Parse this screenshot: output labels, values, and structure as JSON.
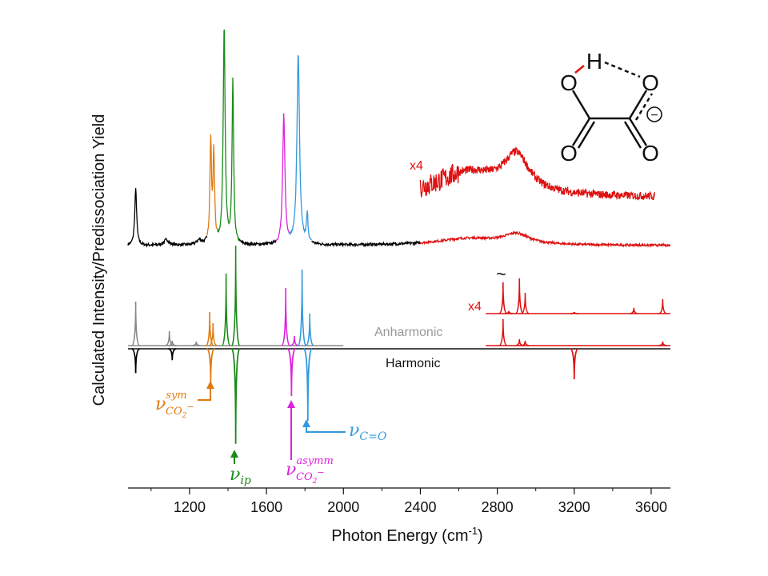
{
  "chart_data": {
    "type": "line",
    "xlabel": "Photon Energy (cm",
    "xlabel_sup": "-1",
    "xlabel_close": ")",
    "ylabel": "Calculated Intensity/Predissociation Yield",
    "xlim": [
      880,
      3700
    ],
    "xticks": [
      1200,
      1600,
      2000,
      2400,
      2800,
      3200,
      3600
    ],
    "grid": false,
    "traces": {
      "experiment": {
        "baseline": 0,
        "peaks": [
          {
            "x": 920,
            "h": 0.5,
            "w": 6,
            "color": "#000000"
          },
          {
            "x": 1080,
            "h": 0.05,
            "w": 15,
            "color": "#000000"
          },
          {
            "x": 1250,
            "h": 0.04,
            "w": 15,
            "color": "#000000"
          },
          {
            "x": 1310,
            "h": 0.9,
            "w": 5,
            "color": "#e07a10"
          },
          {
            "x": 1326,
            "h": 0.78,
            "w": 5,
            "color": "#e07a10"
          },
          {
            "x": 1380,
            "h": 1.95,
            "w": 6,
            "color": "#1a8a1a"
          },
          {
            "x": 1425,
            "h": 1.45,
            "w": 5,
            "color": "#1a8a1a"
          },
          {
            "x": 1690,
            "h": 1.15,
            "w": 7,
            "color": "#dd22dd"
          },
          {
            "x": 1765,
            "h": 1.7,
            "w": 8,
            "color": "#3399dd"
          },
          {
            "x": 1812,
            "h": 0.25,
            "w": 5,
            "color": "#3399dd"
          },
          {
            "x": 2900,
            "h": 0.09,
            "w": 80,
            "color": "#dd1111"
          },
          {
            "x": 2650,
            "h": 0.06,
            "w": 200,
            "color": "#dd1111"
          }
        ],
        "color_ranges": [
          {
            "from": 880,
            "to": 1290,
            "color": "#000000"
          },
          {
            "from": 1290,
            "to": 1345,
            "color": "#e07a10"
          },
          {
            "from": 1345,
            "to": 1460,
            "color": "#1a8a1a"
          },
          {
            "from": 1460,
            "to": 1650,
            "color": "#000000"
          },
          {
            "from": 1650,
            "to": 1720,
            "color": "#dd22dd"
          },
          {
            "from": 1720,
            "to": 1835,
            "color": "#3399dd"
          },
          {
            "from": 1835,
            "to": 2400,
            "color": "#000000"
          },
          {
            "from": 2400,
            "to": 3700,
            "color": "#dd1111"
          }
        ],
        "x4_range": [
          2400,
          3620
        ],
        "x4_label": "x4"
      },
      "anharmonic": {
        "label": "Anharmonic",
        "sticks": [
          {
            "x": 920,
            "h": 0.55,
            "color": "#888888"
          },
          {
            "x": 1095,
            "h": 0.18,
            "color": "#888888"
          },
          {
            "x": 1110,
            "h": 0.06,
            "color": "#888888"
          },
          {
            "x": 1235,
            "h": 0.05,
            "color": "#888888"
          },
          {
            "x": 1305,
            "h": 0.42,
            "color": "#e07a10"
          },
          {
            "x": 1322,
            "h": 0.28,
            "color": "#e07a10"
          },
          {
            "x": 1390,
            "h": 0.9,
            "color": "#1a8a1a"
          },
          {
            "x": 1440,
            "h": 1.25,
            "color": "#1a8a1a"
          },
          {
            "x": 1700,
            "h": 0.72,
            "color": "#dd22dd"
          },
          {
            "x": 1745,
            "h": 0.12,
            "color": "#dd22dd"
          },
          {
            "x": 1785,
            "h": 0.95,
            "color": "#3399dd"
          },
          {
            "x": 1825,
            "h": 0.4,
            "color": "#3399dd"
          },
          {
            "x": 2830,
            "h": 0.33,
            "color": "#dd1111"
          },
          {
            "x": 2915,
            "h": 0.08,
            "color": "#dd1111"
          },
          {
            "x": 2945,
            "h": 0.06,
            "color": "#dd1111"
          },
          {
            "x": 3660,
            "h": 0.05,
            "color": "#dd1111"
          }
        ],
        "x4_sticks": [
          {
            "x": 2830,
            "h": 0.98
          },
          {
            "x": 2860,
            "h": 0.08
          },
          {
            "x": 2915,
            "h": 1.1
          },
          {
            "x": 2945,
            "h": 0.65
          },
          {
            "x": 3200,
            "h": 0.05
          },
          {
            "x": 3510,
            "h": 0.18
          },
          {
            "x": 3660,
            "h": 0.45
          }
        ],
        "x4_label": "x4",
        "tilde": "~"
      },
      "harmonic": {
        "label": "Harmonic",
        "sticks": [
          {
            "x": 920,
            "h": 0.32,
            "color": "#000000"
          },
          {
            "x": 1110,
            "h": 0.15,
            "color": "#000000"
          },
          {
            "x": 1310,
            "h": 0.45,
            "color": "#e07a10"
          },
          {
            "x": 1440,
            "h": 1.25,
            "color": "#1a8a1a"
          },
          {
            "x": 1730,
            "h": 0.62,
            "color": "#dd22dd"
          },
          {
            "x": 1815,
            "h": 0.95,
            "color": "#3399dd"
          },
          {
            "x": 3200,
            "h": 0.4,
            "color": "#dd1111"
          }
        ]
      }
    },
    "annotations": {
      "sym": {
        "base": "ν",
        "sup": "sym",
        "sub": "CO",
        "sub2": "2",
        "charge": "−",
        "color": "#e07a10"
      },
      "ip": {
        "base": "ν",
        "sub": "ip",
        "color": "#1a8a1a"
      },
      "asymm": {
        "base": "ν",
        "sup": "asymm",
        "sub": "CO",
        "sub2": "2",
        "charge": "−",
        "color": "#dd22dd"
      },
      "co": {
        "base": "ν",
        "sub": "C=O",
        "color": "#3399dd"
      }
    },
    "molecule": {
      "atoms": [
        "O",
        "O",
        "O",
        "O"
      ],
      "hydrogen": "H",
      "charge": "−",
      "h_color": "#dd1111"
    }
  }
}
